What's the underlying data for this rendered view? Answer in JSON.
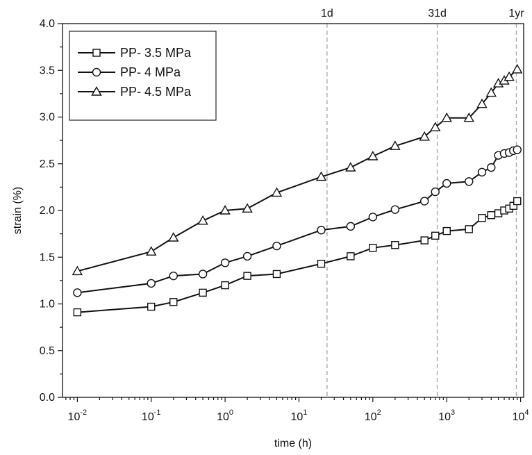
{
  "chart_data": {
    "type": "line",
    "title": "",
    "xlabel": "time (h)",
    "ylabel": "strain (%)",
    "xscale": "log",
    "xlim": [
      0.0063,
      11000
    ],
    "ylim": [
      0,
      4
    ],
    "x_tick_values": [
      0.01,
      0.1,
      1,
      10,
      100,
      1000,
      10000
    ],
    "x_tick_labels": [
      {
        "base": "10",
        "exp": "-2"
      },
      {
        "base": "10",
        "exp": "-1"
      },
      {
        "base": "10",
        "exp": "0"
      },
      {
        "base": "10",
        "exp": "1"
      },
      {
        "base": "10",
        "exp": "2"
      },
      {
        "base": "10",
        "exp": "3"
      },
      {
        "base": "10",
        "exp": "4"
      }
    ],
    "y_ticks": [
      "0.0",
      "0.5",
      "1.0",
      "1.5",
      "2.0",
      "2.5",
      "3.0",
      "3.5",
      "4.0"
    ],
    "grid": false,
    "legend_position": "top-left",
    "reference_lines": [
      {
        "label": "1d",
        "x": 24
      },
      {
        "label": "31d",
        "x": 744
      },
      {
        "label": "1yr",
        "x": 8760
      }
    ],
    "series": [
      {
        "name": "PP- 3.5 MPa",
        "marker": "square",
        "x": [
          0.01,
          0.1,
          0.2,
          0.5,
          1,
          2,
          5,
          20,
          50,
          100,
          200,
          500,
          700,
          1000,
          2000,
          3000,
          4000,
          5000,
          6000,
          7000,
          8000,
          9000
        ],
        "values": [
          0.91,
          0.97,
          1.02,
          1.12,
          1.2,
          1.3,
          1.32,
          1.43,
          1.51,
          1.6,
          1.63,
          1.68,
          1.73,
          1.78,
          1.8,
          1.92,
          1.95,
          1.97,
          2.0,
          2.02,
          2.05,
          2.1
        ]
      },
      {
        "name": "PP- 4 MPa",
        "marker": "circle",
        "x": [
          0.01,
          0.1,
          0.2,
          0.5,
          1,
          2,
          5,
          20,
          50,
          100,
          200,
          500,
          700,
          1000,
          2000,
          3000,
          4000,
          5000,
          6000,
          7000,
          8000,
          9000
        ],
        "values": [
          1.12,
          1.22,
          1.3,
          1.32,
          1.44,
          1.51,
          1.62,
          1.79,
          1.83,
          1.93,
          2.01,
          2.1,
          2.2,
          2.29,
          2.31,
          2.41,
          2.46,
          2.59,
          2.61,
          2.62,
          2.64,
          2.65
        ]
      },
      {
        "name": "PP- 4.5 MPa",
        "marker": "triangle",
        "x": [
          0.01,
          0.1,
          0.2,
          0.5,
          1,
          2,
          5,
          20,
          50,
          100,
          200,
          500,
          700,
          1000,
          2000,
          3000,
          4000,
          5000,
          6000,
          7000,
          9000
        ],
        "values": [
          1.35,
          1.56,
          1.71,
          1.89,
          2.0,
          2.02,
          2.19,
          2.36,
          2.46,
          2.58,
          2.69,
          2.79,
          2.89,
          2.99,
          2.99,
          3.14,
          3.26,
          3.36,
          3.39,
          3.43,
          3.51
        ]
      }
    ]
  }
}
